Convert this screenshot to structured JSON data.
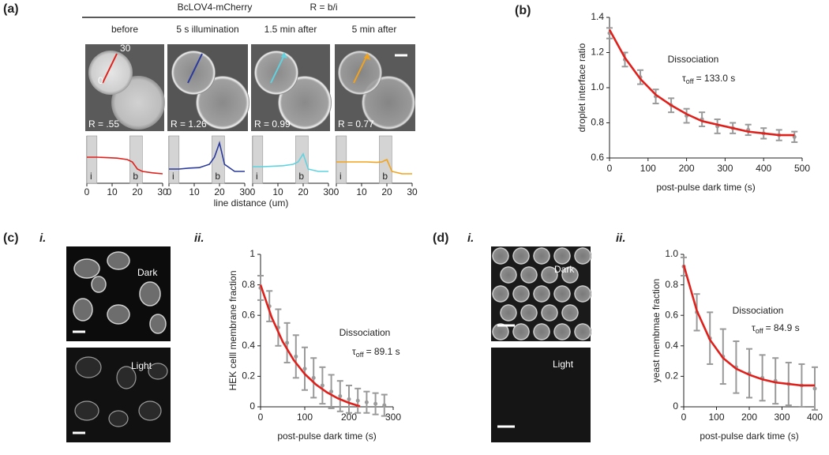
{
  "figure": {
    "a": {
      "label": "(a)",
      "title": "BcLOV4-mCherry",
      "formula": "R = b/i",
      "columns": [
        "before",
        "5 s illumination",
        "1.5 min after",
        "5 min after"
      ],
      "ratios": [
        "R = .55",
        "R = 1.26",
        "R = 0.99",
        "R = 0.77"
      ],
      "arrow_start": "0",
      "arrow_end": "30",
      "regions": [
        [
          0,
          4
        ],
        [
          17,
          22
        ]
      ],
      "region_labels": [
        "i",
        "b"
      ],
      "x_label": "line distance (um)"
    },
    "b": {
      "label": "(b)"
    },
    "c": {
      "label": "(c)",
      "sub_labels": [
        "i.",
        "ii."
      ],
      "image_labels": [
        "Dark",
        "Light"
      ]
    },
    "d": {
      "label": "(d)",
      "sub_labels": [
        "i.",
        "ii."
      ],
      "image_labels": [
        "Dark",
        "Light"
      ]
    }
  },
  "chart_data": [
    {
      "type": "line",
      "xlim": [
        0,
        30
      ],
      "xticks": [
        0,
        10,
        20,
        30
      ],
      "ylim": [
        0,
        1
      ],
      "color": "#e0201b",
      "x": [
        0,
        4,
        8,
        12,
        16,
        18,
        20,
        22,
        26,
        30
      ],
      "values": [
        0.55,
        0.55,
        0.54,
        0.53,
        0.5,
        0.45,
        0.3,
        0.25,
        0.22,
        0.2
      ]
    },
    {
      "type": "line",
      "xlim": [
        0,
        30
      ],
      "xticks": [
        0,
        10,
        20,
        30
      ],
      "ylim": [
        0,
        1
      ],
      "color": "#2b3a9e",
      "x": [
        0,
        4,
        8,
        12,
        16,
        18,
        20,
        22,
        26,
        30
      ],
      "values": [
        0.3,
        0.3,
        0.32,
        0.33,
        0.4,
        0.55,
        0.85,
        0.4,
        0.25,
        0.25
      ]
    },
    {
      "type": "line",
      "xlim": [
        0,
        30
      ],
      "xticks": [
        0,
        10,
        20,
        30
      ],
      "ylim": [
        0,
        1
      ],
      "color": "#5fd3e0",
      "x": [
        0,
        4,
        8,
        12,
        16,
        18,
        20,
        22,
        26,
        30
      ],
      "values": [
        0.35,
        0.35,
        0.36,
        0.37,
        0.4,
        0.45,
        0.62,
        0.3,
        0.25,
        0.25
      ]
    },
    {
      "type": "line",
      "xlim": [
        0,
        30
      ],
      "xticks": [
        0,
        10,
        20,
        30
      ],
      "ylim": [
        0,
        1
      ],
      "color": "#f2a31b",
      "x": [
        0,
        4,
        8,
        12,
        16,
        18,
        20,
        22,
        26,
        30
      ],
      "values": [
        0.45,
        0.45,
        0.45,
        0.45,
        0.44,
        0.45,
        0.5,
        0.25,
        0.2,
        0.2
      ]
    },
    {
      "type": "errorbar",
      "x_label": "post-pulse dark time (s)",
      "y_label": "droplet interface ratio",
      "xlim": [
        0,
        500
      ],
      "xticks": [
        0,
        100,
        200,
        300,
        400,
        500
      ],
      "ylim": [
        0.6,
        1.4
      ],
      "yticks": [
        0.6,
        0.8,
        {
          "value": 1,
          "label": "1.0"
        },
        1.2,
        1.4
      ],
      "color": "#9a9a9a",
      "x": [
        0,
        40,
        80,
        120,
        160,
        200,
        240,
        280,
        320,
        360,
        400,
        440,
        480
      ],
      "values": [
        1.31,
        1.16,
        1.06,
        0.95,
        0.9,
        0.84,
        0.82,
        0.78,
        0.77,
        0.76,
        0.74,
        0.73,
        0.72
      ],
      "errors": [
        0.03,
        0.04,
        0.04,
        0.04,
        0.04,
        0.04,
        0.04,
        0.04,
        0.03,
        0.03,
        0.03,
        0.03,
        0.03
      ],
      "fit": {
        "color": "#e0201b",
        "x": [
          0,
          40,
          80,
          120,
          160,
          200,
          240,
          280,
          320,
          360,
          400,
          440,
          480
        ],
        "values": [
          1.33,
          1.17,
          1.05,
          0.96,
          0.9,
          0.85,
          0.81,
          0.79,
          0.77,
          0.75,
          0.74,
          0.73,
          0.73
        ]
      },
      "annotation": "Dissociation",
      "tau": {
        "symbol": "τ",
        "sub": "off",
        "text": "= 133.0 s"
      }
    },
    {
      "type": "errorbar",
      "x_label": "post-pulse dark time (s)",
      "y_label": "HEK celll membrane fraction",
      "xlim": [
        0,
        300
      ],
      "xticks": [
        0,
        100,
        200,
        300
      ],
      "ylim": [
        0,
        1
      ],
      "yticks": [
        0,
        0.2,
        0.4,
        0.6,
        0.8,
        1
      ],
      "color": "#9a9a9a",
      "x": [
        0,
        20,
        40,
        60,
        80,
        100,
        120,
        140,
        160,
        180,
        200,
        220,
        240,
        260,
        280
      ],
      "values": [
        0.78,
        0.66,
        0.52,
        0.42,
        0.33,
        0.25,
        0.19,
        0.14,
        0.1,
        0.07,
        0.05,
        0.04,
        0.03,
        0.02,
        0.01
      ],
      "errors": [
        0.08,
        0.1,
        0.12,
        0.13,
        0.14,
        0.14,
        0.13,
        0.12,
        0.11,
        0.1,
        0.09,
        0.08,
        0.07,
        0.07,
        0.07
      ],
      "fit": {
        "color": "#e0201b",
        "x": [
          0,
          25,
          50,
          75,
          100,
          125,
          150,
          175,
          200,
          225
        ],
        "values": [
          0.8,
          0.588,
          0.428,
          0.307,
          0.215,
          0.147,
          0.095,
          0.055,
          0.026,
          0.003
        ]
      },
      "annotation": "Dissociation",
      "tau": {
        "symbol": "τ",
        "sub": "off",
        "text": "= 89.1 s"
      }
    },
    {
      "type": "errorbar",
      "x_label": "post-pulse dark time (s)",
      "y_label": "yeast  membmae fraction",
      "xlim": [
        0,
        400
      ],
      "xticks": [
        0,
        100,
        200,
        300,
        400
      ],
      "ylim": [
        0,
        1
      ],
      "yticks": [
        0,
        0.2,
        0.4,
        0.6,
        0.8,
        {
          "value": 1,
          "label": "1.0"
        }
      ],
      "color": "#9a9a9a",
      "x": [
        0,
        40,
        80,
        120,
        160,
        200,
        240,
        280,
        320,
        360,
        400
      ],
      "values": [
        0.92,
        0.62,
        0.45,
        0.33,
        0.26,
        0.22,
        0.19,
        0.17,
        0.15,
        0.14,
        0.12
      ],
      "errors": [
        0.06,
        0.12,
        0.17,
        0.18,
        0.17,
        0.16,
        0.15,
        0.15,
        0.14,
        0.14,
        0.14
      ],
      "fit": {
        "color": "#e0201b",
        "x": [
          0,
          40,
          80,
          120,
          160,
          200,
          240,
          280,
          320,
          360,
          400
        ],
        "values": [
          0.93,
          0.63,
          0.44,
          0.32,
          0.25,
          0.21,
          0.18,
          0.16,
          0.15,
          0.14,
          0.14
        ]
      },
      "annotation": "Dissociation",
      "tau": {
        "symbol": "τ",
        "sub": "off",
        "text": "= 84.9 s"
      }
    }
  ]
}
